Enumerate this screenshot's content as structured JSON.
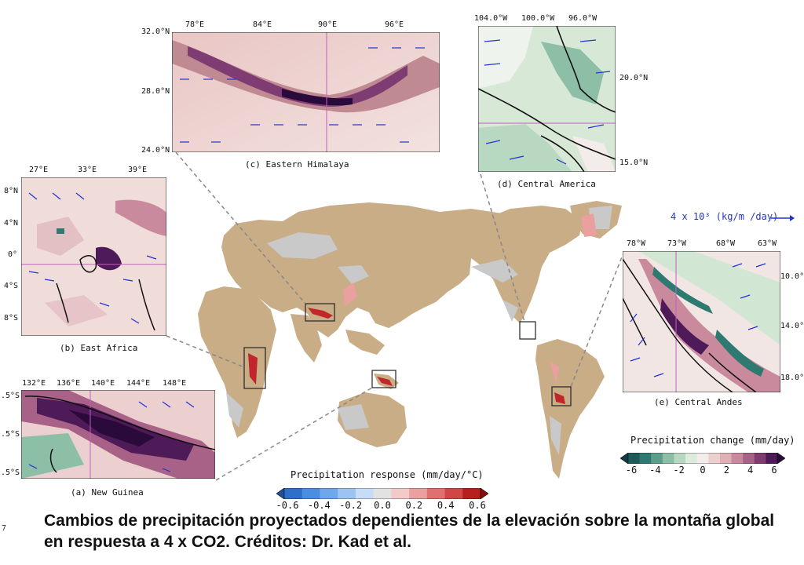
{
  "panels": {
    "himalaya": {
      "title": "(c) Eastern Himalaya",
      "lon_ticks": [
        "78°E",
        "84°E",
        "90°E",
        "96°E"
      ],
      "lat_ticks": [
        "32.0°N",
        "28.0°N",
        "24.0°N"
      ]
    },
    "central_america": {
      "title": "(d) Central America",
      "lon_ticks": [
        "104.0°W",
        "100.0°W",
        "96.0°W"
      ],
      "lat_ticks": [
        "20.0°N",
        "15.0°N"
      ]
    },
    "east_africa": {
      "title": "(b) East Africa",
      "lon_ticks": [
        "27°E",
        "33°E",
        "39°E"
      ],
      "lat_ticks": [
        "8°N",
        "4°N",
        "0°",
        "4°S",
        "8°S"
      ]
    },
    "new_guinea": {
      "title": "(a) New Guinea",
      "lon_ticks": [
        "132°E",
        "136°E",
        "140°E",
        "144°E",
        "148°E"
      ],
      "lat_ticks": [
        ".5°S",
        ".5°S",
        ".5°S"
      ]
    },
    "central_andes": {
      "title": "(e) Central Andes",
      "lon_ticks": [
        "78°W",
        "73°W",
        "68°W",
        "63°W"
      ],
      "lat_ticks": [
        "10.0°",
        "14.0°",
        "18.0°"
      ]
    }
  },
  "vector_legend": "4 x 10³ (kg/m /day)",
  "colorbar_response": {
    "label": "Precipitation response (mm/day/°C)",
    "ticks": [
      "-0.6",
      "-0.4",
      "-0.2",
      "0.0",
      "0.2",
      "0.4",
      "0.6"
    ],
    "colors": [
      "#1f4fa0",
      "#2e6fc8",
      "#4a8ee0",
      "#6ea8ec",
      "#9cc4f2",
      "#c7dcf6",
      "#e2e2e2",
      "#f3c9c9",
      "#eba0a0",
      "#e07070",
      "#d04646",
      "#b81e1e",
      "#8c0a0a"
    ]
  },
  "colorbar_change": {
    "label": "Precipitation change (mm/day)",
    "ticks": [
      "-6",
      "-4",
      "-2",
      "0",
      "2",
      "4",
      "6"
    ],
    "colors": [
      "#153b46",
      "#1f5a5a",
      "#2f7a70",
      "#5a9e8a",
      "#8cbfa6",
      "#b9d8c2",
      "#dcebdc",
      "#f4ecea",
      "#ecd0cf",
      "#dfb0b6",
      "#c98a9e",
      "#a86287",
      "#7e3c73",
      "#4e1a58",
      "#2a0a3a"
    ]
  },
  "marker": "7",
  "caption": "Cambios de precipitación proyectados dependientes de la elevación sobre la montaña global en respuesta a 4 x CO2. Créditos: Dr. Kad et al."
}
